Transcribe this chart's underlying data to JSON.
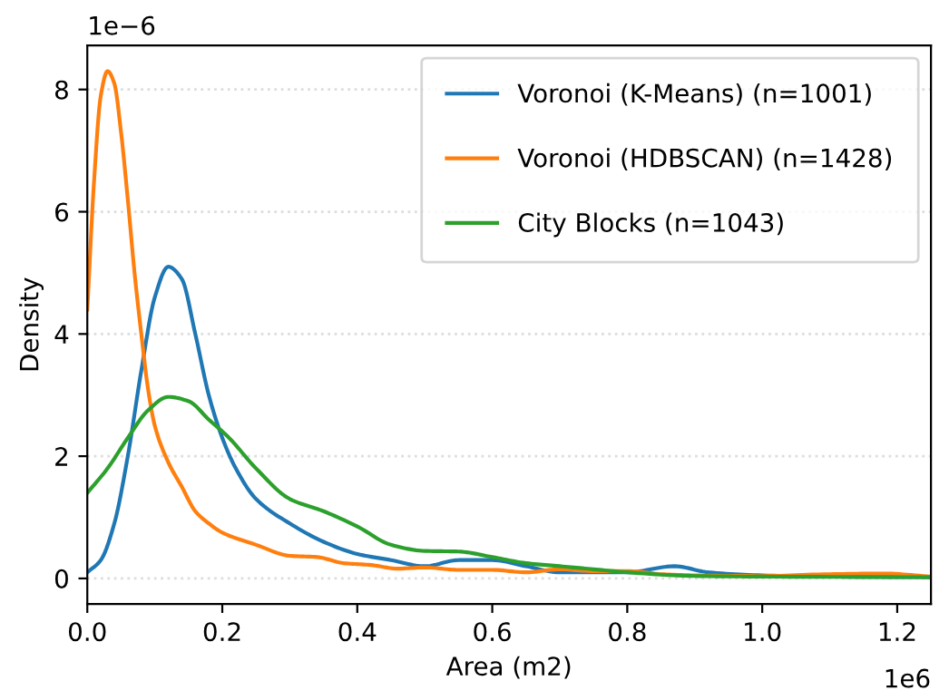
{
  "chart_data": {
    "type": "line",
    "xlabel": "Area (m2)",
    "ylabel": "Density",
    "xlim": [
      0,
      1.25
    ],
    "ylim": [
      -0.42,
      8.72
    ],
    "xticks": [
      {
        "value": 0,
        "label": "0.0"
      },
      0.2,
      0.4,
      0.6,
      0.8,
      {
        "value": 1,
        "label": "1.0"
      },
      1.2
    ],
    "yticks": [
      0,
      2,
      4,
      6,
      8
    ],
    "annotations": [
      "1e−6",
      "1e6"
    ],
    "grid": "y",
    "legend": "top right",
    "marker": "none",
    "line_style": "solid",
    "series": [
      {
        "name": "Voronoi (K-Means) (n=1001)",
        "color": "#1f77b4",
        "x": [
          0,
          0.02,
          0.04,
          0.06,
          0.08,
          0.1,
          0.12,
          0.14,
          0.16,
          0.18,
          0.2,
          0.22,
          0.25,
          0.3,
          0.35,
          0.4,
          0.45,
          0.5,
          0.55,
          0.6,
          0.65,
          0.7,
          0.75,
          0.8,
          0.87,
          0.92,
          1.0,
          1.1,
          1.25
        ],
        "values": [
          0.1,
          0.3,
          0.9,
          2.0,
          3.4,
          4.6,
          5.1,
          4.9,
          4.0,
          3.0,
          2.3,
          1.8,
          1.3,
          0.9,
          0.6,
          0.4,
          0.3,
          0.2,
          0.3,
          0.3,
          0.2,
          0.1,
          0.1,
          0.1,
          0.2,
          0.1,
          0.05,
          0.03,
          0.02
        ]
      },
      {
        "name": "Voronoi (HDBSCAN) (n=1428)",
        "color": "#ff7f0e",
        "x": [
          0,
          0.01,
          0.02,
          0.03,
          0.04,
          0.05,
          0.06,
          0.07,
          0.08,
          0.09,
          0.1,
          0.12,
          0.14,
          0.16,
          0.18,
          0.2,
          0.25,
          0.3,
          0.34,
          0.38,
          0.42,
          0.46,
          0.5,
          0.55,
          0.6,
          0.65,
          0.7,
          0.75,
          0.8,
          0.85,
          0.9,
          1.0,
          1.1,
          1.18,
          1.25
        ],
        "values": [
          4.4,
          6.5,
          7.9,
          8.3,
          8.1,
          7.3,
          6.2,
          5.0,
          4.0,
          3.1,
          2.5,
          1.9,
          1.5,
          1.1,
          0.9,
          0.75,
          0.55,
          0.37,
          0.35,
          0.25,
          0.22,
          0.16,
          0.18,
          0.14,
          0.14,
          0.1,
          0.15,
          0.12,
          0.12,
          0.07,
          0.05,
          0.04,
          0.07,
          0.08,
          0.03
        ]
      },
      {
        "name": "City Blocks (n=1043)",
        "color": "#2ca02c",
        "x": [
          0,
          0.03,
          0.06,
          0.09,
          0.12,
          0.15,
          0.18,
          0.21,
          0.25,
          0.3,
          0.35,
          0.4,
          0.45,
          0.5,
          0.55,
          0.6,
          0.65,
          0.7,
          0.75,
          0.8,
          0.9,
          1.0,
          1.25
        ],
        "values": [
          1.4,
          1.8,
          2.3,
          2.75,
          2.97,
          2.9,
          2.6,
          2.3,
          1.8,
          1.3,
          1.1,
          0.85,
          0.55,
          0.45,
          0.44,
          0.35,
          0.25,
          0.2,
          0.15,
          0.1,
          0.04,
          0.03,
          0.02
        ]
      }
    ]
  }
}
